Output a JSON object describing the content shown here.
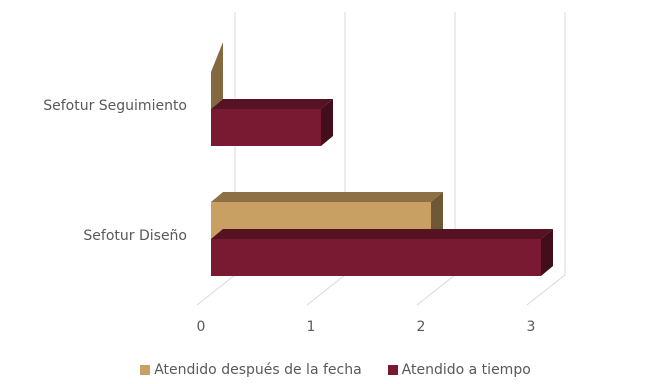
{
  "chart_data": {
    "type": "bar",
    "orientation": "horizontal",
    "three_d": true,
    "categories": [
      "Sefotur Seguimiento",
      "Sefotur Diseño"
    ],
    "series": [
      {
        "name": "Atendido después de la fecha",
        "values": [
          0,
          2
        ],
        "color": "#C9A063"
      },
      {
        "name": "Atendido a tiempo",
        "values": [
          1,
          3
        ],
        "color": "#7A1A32"
      }
    ],
    "xticks": [
      "0",
      "1",
      "2",
      "3"
    ],
    "xlim": [
      0,
      3
    ],
    "grid": true,
    "legend_position": "bottom"
  }
}
